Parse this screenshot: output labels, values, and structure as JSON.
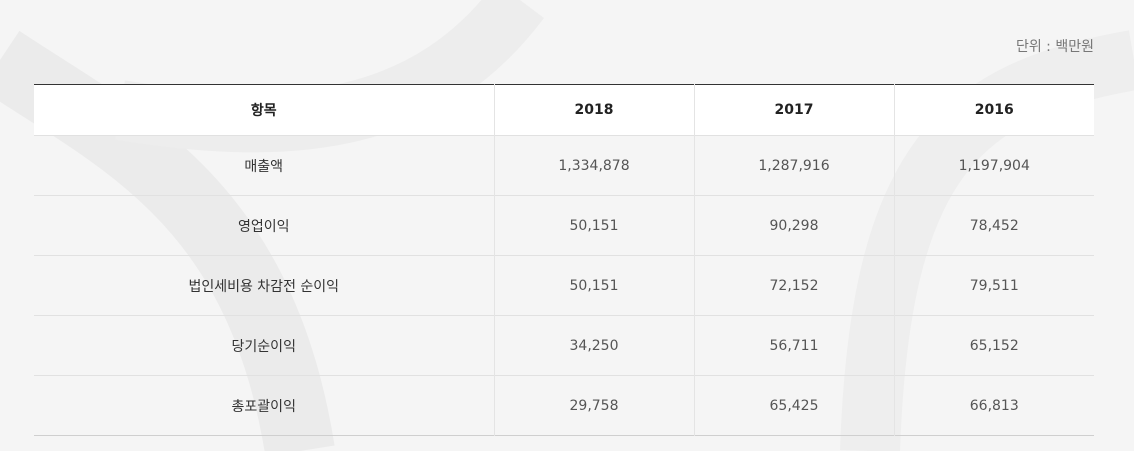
{
  "unit_label": "단위 : 백만원",
  "table": {
    "headers": [
      "항목",
      "2018",
      "2017",
      "2016"
    ],
    "rows": [
      {
        "item": "매출액",
        "y2018": "1,334,878",
        "y2017": "1,287,916",
        "y2016": "1,197,904"
      },
      {
        "item": "영업이익",
        "y2018": "50,151",
        "y2017": "90,298",
        "y2016": "78,452"
      },
      {
        "item": "법인세비용 차감전 순이익",
        "y2018": "50,151",
        "y2017": "72,152",
        "y2016": "79,511"
      },
      {
        "item": "당기순이익",
        "y2018": "34,250",
        "y2017": "56,711",
        "y2016": "65,152"
      },
      {
        "item": "총포괄이익",
        "y2018": "29,758",
        "y2017": "65,425",
        "y2016": "66,813"
      }
    ]
  }
}
